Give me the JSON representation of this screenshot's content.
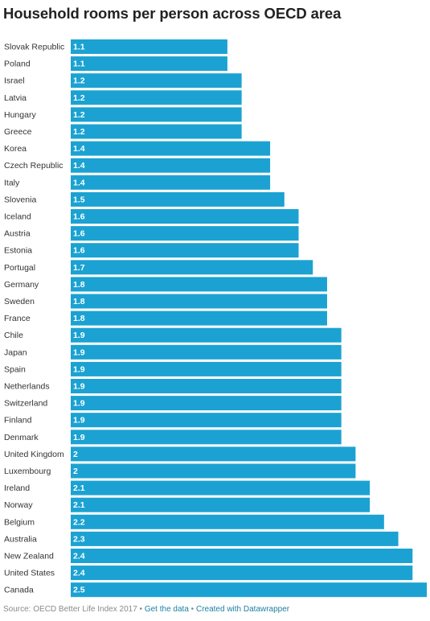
{
  "title": "Household rooms per person across OECD area",
  "colors": {
    "bar": "#1ba2d2",
    "label": "#333333",
    "value": "#ffffff",
    "link": "#1d81a2"
  },
  "chart_data": {
    "type": "bar",
    "orientation": "horizontal",
    "title": "Household rooms per person across OECD area",
    "xlabel": "",
    "ylabel": "",
    "xlim": [
      0,
      2.5
    ],
    "grid": false,
    "legend": "none",
    "categories": [
      "Slovak Republic",
      "Poland",
      "Israel",
      "Latvia",
      "Hungary",
      "Greece",
      "Korea",
      "Czech Republic",
      "Italy",
      "Slovenia",
      "Iceland",
      "Austria",
      "Estonia",
      "Portugal",
      "Germany",
      "Sweden",
      "France",
      "Chile",
      "Japan",
      "Spain",
      "Netherlands",
      "Switzerland",
      "Finland",
      "Denmark",
      "United Kingdom",
      "Luxembourg",
      "Ireland",
      "Norway",
      "Belgium",
      "Australia",
      "New Zealand",
      "United States",
      "Canada"
    ],
    "values": [
      1.1,
      1.1,
      1.2,
      1.2,
      1.2,
      1.2,
      1.4,
      1.4,
      1.4,
      1.5,
      1.6,
      1.6,
      1.6,
      1.7,
      1.8,
      1.8,
      1.8,
      1.9,
      1.9,
      1.9,
      1.9,
      1.9,
      1.9,
      1.9,
      2,
      2,
      2.1,
      2.1,
      2.2,
      2.3,
      2.4,
      2.4,
      2.5
    ]
  },
  "footer": {
    "source": "Source: OECD Better Life Index 2017",
    "sep1": "•",
    "get_data": "Get the data",
    "sep2": "•",
    "created_with": "Created with Datawrapper"
  }
}
